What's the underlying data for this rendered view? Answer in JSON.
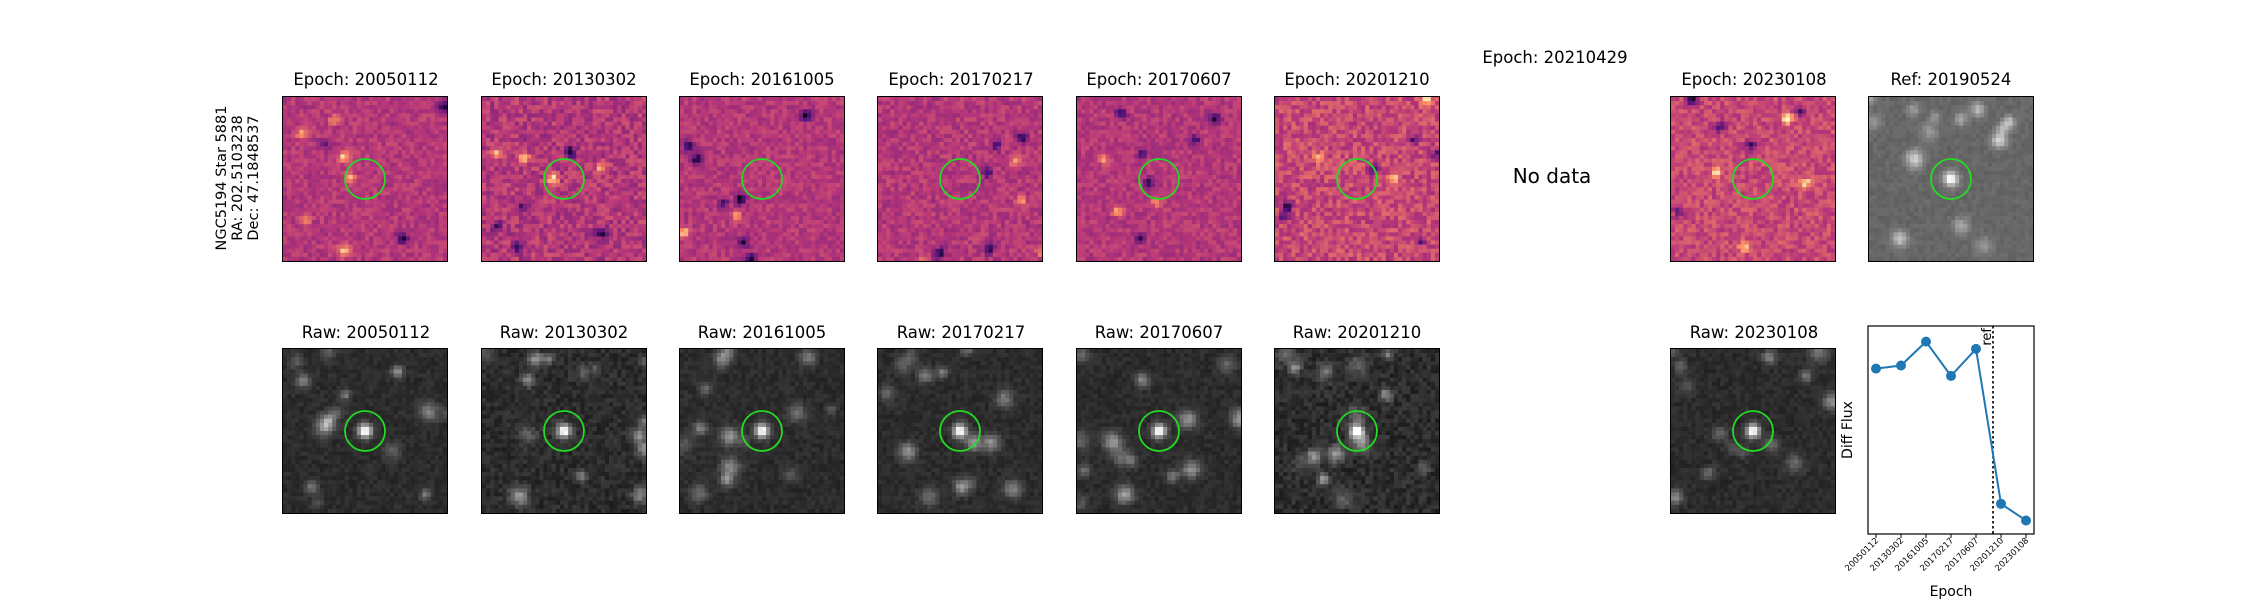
{
  "star_label": {
    "name": "NGC5194 Star 5881",
    "ra": "RA: 202.5103238",
    "dec": "Dec: 47.1848537"
  },
  "diff_panels": [
    {
      "title": "Epoch: 20050112",
      "has_data": true
    },
    {
      "title": "Epoch: 20130302",
      "has_data": true
    },
    {
      "title": "Epoch: 20161005",
      "has_data": true
    },
    {
      "title": "Epoch: 20170217",
      "has_data": true
    },
    {
      "title": "Epoch: 20170607",
      "has_data": true
    },
    {
      "title": "Epoch: 20201210",
      "has_data": true
    },
    {
      "title": "Epoch: 20210429",
      "has_data": false,
      "no_data_text": "No data"
    },
    {
      "title": "Epoch: 20230108",
      "has_data": true
    }
  ],
  "ref_panel": {
    "title": "Ref: 20190524"
  },
  "raw_panels": [
    {
      "title": "Raw: 20050112"
    },
    {
      "title": "Raw: 20130302"
    },
    {
      "title": "Raw: 20161005"
    },
    {
      "title": "Raw: 20170217"
    },
    {
      "title": "Raw: 20170607"
    },
    {
      "title": "Raw: 20201210"
    },
    {
      "title": "Raw: 20230108"
    }
  ],
  "colors": {
    "circle": "#22dd22",
    "line": "#1f77b4",
    "diff_mid": "#b04a78",
    "raw_bg": "#2a2a2a",
    "ref_bg": "#6a6a6a"
  },
  "chart_data": {
    "type": "line",
    "title": "",
    "xlabel": "Epoch",
    "ylabel": "Diff Flux",
    "categories": [
      "20050112",
      "20130302",
      "20161005",
      "20170217",
      "20170607",
      "20201210",
      "20230108"
    ],
    "values": [
      0.74,
      0.77,
      1.0,
      0.67,
      0.93,
      -0.56,
      -0.72
    ],
    "ylim": [
      -0.85,
      1.15
    ],
    "ref_line": {
      "after_index": 4,
      "fraction": 0.68,
      "label": "ref"
    },
    "yticks": "hidden"
  }
}
